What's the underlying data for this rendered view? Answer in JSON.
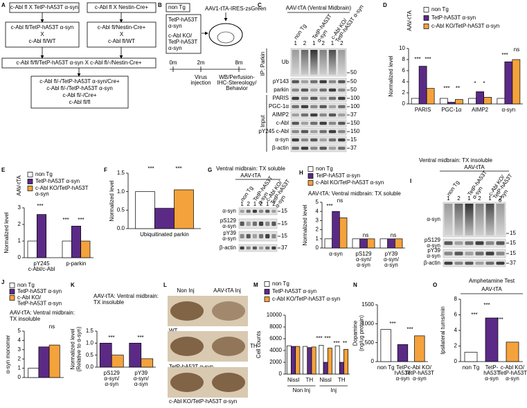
{
  "panel_labels": [
    "A",
    "B",
    "C",
    "D",
    "E",
    "F",
    "G",
    "H",
    "I",
    "J",
    "K",
    "L",
    "M",
    "N",
    "O"
  ],
  "panel_a": {
    "boxes": [
      [
        "c-Abl fl X TetP-hA53T α-syn"
      ],
      [
        "c-Abl fl X Nestin-Cre+"
      ],
      [
        "c-Abl fl/TetP-hA53T α-syn",
        "X",
        "c-Abl fl/WT"
      ],
      [
        "c-Abl fl/Nestin-Cre+",
        "X",
        "c-Abl fl/WT"
      ],
      [
        "c-Abl fl/fl/TetP-hA53T α-syn X c-Abl fl/-/Nestin-Cre+"
      ],
      [
        "c-Abl fl/-/TetP-hA53T α-syn/Cre+",
        "c-Abl fl/-/TetP-hA53T α-syn",
        "c-Abl fl/-/Cre+",
        "c-Abl fl/fl"
      ]
    ]
  },
  "panel_b": {
    "groups": [
      [
        "non Tg"
      ],
      [
        "TetP-hA53T",
        "α-syn"
      ],
      [
        "c-Abl KO/",
        "TetP-hA53T",
        "α-syn"
      ]
    ],
    "vector": "AAV1-tTA-IRES-zsGreen",
    "times": [
      "0m",
      "2m",
      "8m"
    ],
    "events": [
      [
        "Virus",
        "injection"
      ],
      [
        "WB/Perfusion-",
        "IHC-Stereology/",
        "Behavior"
      ]
    ]
  },
  "panel_c": {
    "title": "AAV-tTA (Ventral Midbrain)",
    "columns": [
      "non Tg",
      [
        "TetP-hA53T",
        "α-syn"
      ],
      [
        "c-Abl KO/",
        "TetP-hA53T α-syn"
      ]
    ],
    "lanes": [
      "1",
      "2",
      "1",
      "2",
      "1",
      "2"
    ],
    "sections": [
      "IP: Parkin",
      "Input"
    ],
    "rows": [
      {
        "label": "Ub",
        "marker": "50"
      },
      {
        "label": "pY143",
        "marker": "50"
      },
      {
        "label": "parkin",
        "marker": "50"
      },
      {
        "label": "PARIS",
        "marker": "100"
      },
      {
        "label": "PGC-1α",
        "marker": "100"
      },
      {
        "label": "AIMP2",
        "marker": "37"
      },
      {
        "label": "c-Abl",
        "marker": "150"
      },
      {
        "label": "pY245 c-Abl",
        "marker": "150"
      },
      {
        "label": "α-syn",
        "marker": "15"
      },
      {
        "label": "β-actin",
        "marker": "37"
      }
    ]
  },
  "panel_g": {
    "title": "Ventral midbrain: TX soluble",
    "subtitle": "AAV-tTA",
    "columns": [
      "non Tg",
      [
        "TetP-hA53T",
        "α-syn"
      ],
      [
        "c-Abl KO/",
        "TetP-hA53T",
        "α-syn"
      ]
    ],
    "lanes": [
      "1",
      "2",
      "1",
      "2",
      "1",
      "2"
    ],
    "rows": [
      {
        "label": "α-syn",
        "marker": "15"
      },
      {
        "label": [
          "pS129",
          "α-syn"
        ],
        "marker": "15"
      },
      {
        "label": [
          "pY39",
          "α-syn"
        ],
        "marker": "15"
      },
      {
        "label": "β-actin",
        "marker": "37"
      }
    ]
  },
  "panel_i": {
    "title": "Ventral midbrain: TX insoluble",
    "subtitle": "AAV-tTA",
    "columns": [
      "non Tg",
      [
        "TetP-hA53T",
        "α-syn"
      ],
      [
        "c-Abl KO/",
        "TetP-hA53T",
        "α-syn"
      ]
    ],
    "lanes": [
      "1",
      "2",
      "1",
      "2",
      "1",
      "2"
    ],
    "rows": [
      {
        "label": "α-syn",
        "marker": "15"
      },
      {
        "label": [
          "pS129",
          "α-syn"
        ],
        "marker": "15"
      },
      {
        "label": [
          "pY39",
          "α-syn"
        ],
        "marker": "15"
      },
      {
        "label": "β-actin",
        "marker": "37"
      }
    ]
  },
  "panel_l": {
    "columns": [
      "Non Inj",
      "AAV-tTA Inj"
    ],
    "rows": [
      "WT",
      "TetP-hA53T α-syn",
      "c-Abl KO/TetP-hA53T α-syn"
    ],
    "stain": "TH"
  },
  "chart_data": [
    {
      "type": "bar",
      "title": "AAV-tTA",
      "ylabel": "Normalized level",
      "categories": [
        "PARIS",
        "PGC-1α",
        "AIMP2",
        "α-syn"
      ],
      "series": [
        {
          "name": "non Tg",
          "color": "#ffffff",
          "values": [
            1,
            1,
            1,
            1
          ]
        },
        {
          "name": "TetP-hA53T α-syn",
          "color": "#5b2a86",
          "values": [
            6.8,
            0.3,
            2.2,
            7.6
          ]
        },
        {
          "name": "c-Abl KO/TetP-hA53T α-syn",
          "color": "#f4a23c",
          "values": [
            2.8,
            0.8,
            1.2,
            8.0
          ]
        }
      ],
      "ylim": [
        0,
        10
      ],
      "yticks": [
        0,
        2,
        4,
        6,
        8,
        10
      ],
      "annotations": [
        "***",
        "***",
        "***",
        "**",
        "*",
        "*",
        "***",
        "ns"
      ]
    },
    {
      "type": "bar",
      "title": "AAV-tTA",
      "ylabel": "Normalized level",
      "categories": [
        [
          "pY245",
          "c-Abl/c-Abl"
        ],
        "p-parkin"
      ],
      "series": [
        {
          "name": "non Tg",
          "color": "#ffffff",
          "values": [
            1,
            1
          ]
        },
        {
          "name": "TetP-hA53T α-syn",
          "color": "#5b2a86",
          "values": [
            2.6,
            1.9
          ]
        },
        {
          "name": [
            "c-Abl KO/TetP-hA53T",
            "α-syn"
          ],
          "color": "#f4a23c",
          "values": [
            null,
            1.0
          ]
        }
      ],
      "ylim": [
        0,
        3
      ],
      "yticks": [
        0,
        1,
        2,
        3
      ],
      "annotations": [
        "***",
        "***",
        "***"
      ]
    },
    {
      "type": "bar",
      "ylabel": "Normalized level",
      "categories": [
        "Ubiquitinated parkin"
      ],
      "series": [
        {
          "color": "#ffffff",
          "values": [
            1.0
          ]
        },
        {
          "color": "#5b2a86",
          "values": [
            0.55
          ]
        },
        {
          "color": "#f4a23c",
          "values": [
            1.05
          ]
        }
      ],
      "ylim": [
        0,
        1.5
      ],
      "yticks": [
        {
          "value": 0,
          "label": "0.0"
        },
        0.5,
        {
          "value": 1,
          "label": "1.0"
        },
        1.5
      ],
      "annotations": [
        "***",
        "***"
      ]
    },
    {
      "type": "bar",
      "title": "AAV-tTA: Ventral midbrain: TX soluble",
      "ylabel": "Normalized level",
      "categories": [
        "α-syn",
        [
          "pS129",
          "α-syn/",
          "α-syn"
        ],
        [
          "pY39",
          "α-syn/",
          "α-syn"
        ]
      ],
      "series": [
        {
          "name": "non Tg",
          "color": "#ffffff",
          "values": [
            1,
            1,
            1
          ]
        },
        {
          "name": "TetP-hA53T α-syn",
          "color": "#5b2a86",
          "values": [
            4.0,
            1.0,
            1.0
          ]
        },
        {
          "name": "c-Abl KO/TetP-hA53T α-syn",
          "color": "#f4a23c",
          "values": [
            3.3,
            1.0,
            1.0
          ]
        }
      ],
      "ylim": [
        0,
        5
      ],
      "yticks": [
        0,
        1,
        2,
        3,
        4,
        5
      ],
      "annotations": [
        "***",
        "ns",
        "ns",
        "ns"
      ]
    },
    {
      "type": "bar",
      "title": [
        "AAV-tTA: Ventral midbrain:",
        "TX insoluble"
      ],
      "ylabel": "α-syn monomer",
      "categories": [
        null
      ],
      "series": [
        {
          "name": "non Tg",
          "color": "#ffffff",
          "values": [
            1.0
          ]
        },
        {
          "name": "TetP-hA53T α-syn",
          "color": "#5b2a86",
          "values": [
            3.3
          ]
        },
        {
          "name": [
            "c-Abl KO/",
            "TetP-hA53T α-syn"
          ],
          "color": "#f4a23c",
          "values": [
            3.5
          ]
        }
      ],
      "ylim": [
        0,
        5
      ],
      "yticks": [
        0,
        1,
        2,
        3,
        4,
        5
      ],
      "annotations": [
        "ns"
      ]
    },
    {
      "type": "bar",
      "title": [
        "AAV-tTA: Ventral midbrain:",
        "TX insoluble"
      ],
      "ylabel": [
        "Normalized level",
        "(Relative to α-syn)"
      ],
      "categories": [
        [
          "pS129",
          "α-syn/",
          "α-syn"
        ],
        [
          "pY39",
          "α-syn/",
          "α-syn"
        ]
      ],
      "series": [
        {
          "color": "#5b2a86",
          "values": [
            1.0,
            1.0
          ]
        },
        {
          "color": "#f4a23c",
          "values": [
            0.5,
            0.35
          ]
        }
      ],
      "ylim": [
        0,
        1.5
      ],
      "yticks": [
        {
          "value": 0,
          "label": "0.0"
        },
        0.5,
        {
          "value": 1,
          "label": "1.0"
        },
        1.5
      ],
      "annotations": [
        "***",
        "***"
      ]
    },
    {
      "type": "bar",
      "ylabel": "Cell counts",
      "categories": [
        "Nissl",
        "TH",
        "Nissl",
        "TH"
      ],
      "group_labels": [
        "Non Inj",
        "Inj"
      ],
      "series": [
        {
          "name": "non Tg",
          "color": "#ffffff",
          "values": [
            4800,
            4700,
            4900,
            4800
          ]
        },
        {
          "name": "TetP-hA53T α-syn",
          "color": "#5b2a86",
          "values": [
            4700,
            4500,
            2000,
            2000
          ]
        },
        {
          "name": "c-Abl KO/TetP-hA53T α-syn",
          "color": "#f4a23c",
          "values": [
            4700,
            4600,
            4400,
            4200
          ]
        }
      ],
      "ylim": [
        0,
        10000
      ],
      "yticks": [
        0,
        2000,
        4000,
        6000,
        8000,
        10000
      ],
      "annotations": [
        "***",
        "***",
        "***",
        "**"
      ]
    },
    {
      "type": "bar",
      "ylabel": [
        "Dopamine",
        "(ng/ug protein)"
      ],
      "categories": [
        "non Tg",
        [
          "TetP-",
          "hA53T",
          "α-syn"
        ],
        [
          "c-Abl KO/",
          "TetP-hA53T",
          "α-syn"
        ]
      ],
      "values": [
        850,
        450,
        680
      ],
      "colors": [
        "#ffffff",
        "#5b2a86",
        "#f4a23c"
      ],
      "ylim": [
        0,
        1500
      ],
      "yticks": [
        0,
        500,
        1000,
        1500
      ],
      "annotations": [
        "***",
        "***"
      ]
    },
    {
      "type": "bar",
      "title": "Amphetamine Test",
      "subtitle": "AAV-tTA",
      "ylabel": "Ipsilateral turns/min",
      "categories": [
        "non Tg",
        [
          "TetP-",
          "hA53T",
          "α-syn"
        ],
        [
          "c-Abl KO/",
          "TetP-hA53T",
          "α-syn"
        ]
      ],
      "values": [
        1.2,
        5.6,
        2.5
      ],
      "colors": [
        "#ffffff",
        "#5b2a86",
        "#f4a23c"
      ],
      "ylim": [
        0,
        8
      ],
      "yticks": [
        0,
        2,
        4,
        6,
        8
      ],
      "annotations": [
        "***",
        "***",
        "***"
      ]
    }
  ]
}
